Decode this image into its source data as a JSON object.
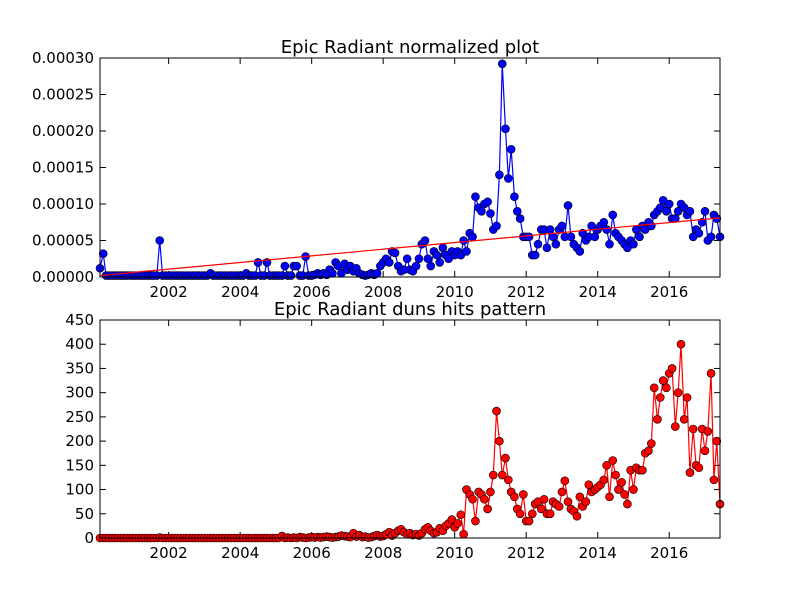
{
  "chart_data": [
    {
      "type": "line",
      "title": "Epic Radiant normalized plot",
      "color": "#0000ff",
      "xlim": [
        2000.08,
        2017.42
      ],
      "xticks": [
        2002,
        2004,
        2006,
        2008,
        2010,
        2012,
        2014,
        2016
      ],
      "ylim": [
        0,
        0.0003
      ],
      "yticks": [
        {
          "value": 0,
          "label": "0.00000"
        },
        {
          "value": 5e-05,
          "label": "0.00005"
        },
        {
          "value": 0.0001,
          "label": "0.00010"
        },
        {
          "value": 0.00015,
          "label": "0.00015"
        },
        {
          "value": 0.0002,
          "label": "0.00020"
        },
        {
          "value": 0.00025,
          "label": "0.00025"
        },
        {
          "value": 0.0003,
          "label": "0.00030"
        }
      ],
      "trend": {
        "color": "#ff0000",
        "x": [
          2000.08,
          2017.42
        ],
        "values": [
          2e-06,
          8.1e-05
        ]
      },
      "x": [
        2000.08,
        2000.17,
        2000.25,
        2000.33,
        2000.42,
        2000.5,
        2000.58,
        2000.67,
        2000.75,
        2000.83,
        2000.92,
        2001,
        2001.08,
        2001.17,
        2001.25,
        2001.33,
        2001.42,
        2001.5,
        2001.58,
        2001.67,
        2001.75,
        2001.83,
        2001.92,
        2002,
        2002.08,
        2002.17,
        2002.25,
        2002.33,
        2002.42,
        2002.5,
        2002.58,
        2002.67,
        2002.75,
        2002.83,
        2002.92,
        2003,
        2003.08,
        2003.17,
        2003.25,
        2003.33,
        2003.42,
        2003.5,
        2003.58,
        2003.67,
        2003.75,
        2003.83,
        2003.92,
        2004,
        2004.08,
        2004.17,
        2004.25,
        2004.33,
        2004.42,
        2004.5,
        2004.58,
        2004.67,
        2004.75,
        2004.83,
        2004.92,
        2005,
        2005.08,
        2005.17,
        2005.25,
        2005.33,
        2005.42,
        2005.5,
        2005.58,
        2005.67,
        2005.75,
        2005.83,
        2005.92,
        2006,
        2006.08,
        2006.17,
        2006.25,
        2006.33,
        2006.42,
        2006.5,
        2006.58,
        2006.67,
        2006.75,
        2006.83,
        2006.92,
        2007,
        2007.08,
        2007.17,
        2007.25,
        2007.33,
        2007.42,
        2007.5,
        2007.58,
        2007.67,
        2007.75,
        2007.83,
        2007.92,
        2008,
        2008.08,
        2008.17,
        2008.25,
        2008.33,
        2008.42,
        2008.5,
        2008.58,
        2008.67,
        2008.75,
        2008.83,
        2008.92,
        2009,
        2009.08,
        2009.17,
        2009.25,
        2009.33,
        2009.42,
        2009.5,
        2009.58,
        2009.67,
        2009.75,
        2009.83,
        2009.92,
        2010,
        2010.08,
        2010.17,
        2010.25,
        2010.33,
        2010.42,
        2010.5,
        2010.58,
        2010.67,
        2010.75,
        2010.83,
        2010.92,
        2011,
        2011.08,
        2011.17,
        2011.25,
        2011.33,
        2011.42,
        2011.5,
        2011.58,
        2011.67,
        2011.75,
        2011.83,
        2011.92,
        2012,
        2012.08,
        2012.17,
        2012.25,
        2012.33,
        2012.42,
        2012.5,
        2012.58,
        2012.67,
        2012.75,
        2012.83,
        2012.92,
        2013,
        2013.08,
        2013.17,
        2013.25,
        2013.33,
        2013.42,
        2013.5,
        2013.58,
        2013.67,
        2013.75,
        2013.83,
        2013.92,
        2014,
        2014.08,
        2014.17,
        2014.25,
        2014.33,
        2014.42,
        2014.5,
        2014.58,
        2014.67,
        2014.75,
        2014.83,
        2014.92,
        2015,
        2015.08,
        2015.17,
        2015.25,
        2015.33,
        2015.42,
        2015.5,
        2015.58,
        2015.67,
        2015.75,
        2015.83,
        2015.92,
        2016,
        2016.08,
        2016.17,
        2016.25,
        2016.33,
        2016.42,
        2016.5,
        2016.58,
        2016.67,
        2016.75,
        2016.83,
        2016.92,
        2017,
        2017.08,
        2017.17,
        2017.25,
        2017.33,
        2017.42
      ],
      "values": [
        1.2e-05,
        3.2e-05,
        2e-06,
        2e-06,
        2e-06,
        2e-06,
        2e-06,
        2e-06,
        2e-06,
        2e-06,
        2e-06,
        2e-06,
        2e-06,
        2e-06,
        2e-06,
        2e-06,
        2e-06,
        2e-06,
        2e-06,
        2e-06,
        5e-05,
        2e-06,
        2e-06,
        2e-06,
        2e-06,
        2e-06,
        2e-06,
        2e-06,
        2e-06,
        2e-06,
        2e-06,
        2e-06,
        2e-06,
        2e-06,
        2e-06,
        2e-06,
        2e-06,
        5e-06,
        2e-06,
        2e-06,
        2e-06,
        2e-06,
        2e-06,
        2e-06,
        2e-06,
        2e-06,
        2e-06,
        2e-06,
        2e-06,
        5e-06,
        2e-06,
        2e-06,
        2e-06,
        2e-05,
        2e-06,
        2e-06,
        2e-05,
        2e-06,
        2e-06,
        2e-06,
        2e-06,
        2e-06,
        1.5e-05,
        2e-06,
        2e-06,
        1.5e-05,
        1.5e-05,
        2e-06,
        2e-06,
        2.8e-05,
        2e-06,
        2e-06,
        3e-06,
        5e-06,
        3e-06,
        5e-06,
        3e-06,
        1e-05,
        5e-06,
        2e-05,
        1.5e-05,
        5e-06,
        1.8e-05,
        1e-05,
        1.5e-05,
        8e-06,
        1.2e-05,
        5e-06,
        3e-06,
        2e-06,
        3e-06,
        5e-06,
        3e-06,
        5e-06,
        1.5e-05,
        2e-05,
        2.5e-05,
        2e-05,
        3.5e-05,
        3.3e-05,
        1.5e-05,
        8e-06,
        1e-05,
        2.5e-05,
        1e-05,
        8e-06,
        1.5e-05,
        2.5e-05,
        4.5e-05,
        5e-05,
        2.5e-05,
        1.5e-05,
        3.5e-05,
        3e-05,
        2e-05,
        4e-05,
        3e-05,
        2.5e-05,
        3.5e-05,
        3e-05,
        3.5e-05,
        3e-05,
        5e-05,
        3.5e-05,
        6e-05,
        5.5e-05,
        0.00011,
        9.5e-05,
        9e-05,
        0.0001,
        0.000103,
        8.7e-05,
        6.5e-05,
        7e-05,
        0.00014,
        0.000292,
        0.000203,
        0.000135,
        0.000175,
        0.00011,
        9e-05,
        8e-05,
        5.5e-05,
        5.5e-05,
        5.5e-05,
        3e-05,
        3e-05,
        4.5e-05,
        6.5e-05,
        6.5e-05,
        4e-05,
        6.5e-05,
        5.5e-05,
        4.5e-05,
        6.5e-05,
        7e-05,
        5.5e-05,
        9.8e-05,
        5.5e-05,
        4.5e-05,
        4e-05,
        3.5e-05,
        6e-05,
        5e-05,
        5.5e-05,
        7e-05,
        5.5e-05,
        6.5e-05,
        7e-05,
        7.5e-05,
        6.5e-05,
        4.5e-05,
        8.5e-05,
        6e-05,
        5.5e-05,
        5e-05,
        4.5e-05,
        4e-05,
        5e-05,
        4.5e-05,
        6.5e-05,
        5.5e-05,
        7e-05,
        6.5e-05,
        7.5e-05,
        7e-05,
        8.5e-05,
        9e-05,
        9.5e-05,
        0.000105,
        9e-05,
        0.0001,
        8e-05,
        8e-05,
        9e-05,
        0.0001,
        9.5e-05,
        8.5e-05,
        9e-05,
        5.5e-05,
        6.5e-05,
        6e-05,
        7.5e-05,
        9e-05,
        5e-05,
        5.5e-05,
        8.5e-05,
        8e-05,
        5.5e-05
      ]
    },
    {
      "type": "line",
      "title": "Epic Radiant duns hits pattern",
      "color": "#ff0000",
      "xlim": [
        2000.08,
        2017.42
      ],
      "xticks": [
        2002,
        2004,
        2006,
        2008,
        2010,
        2012,
        2014,
        2016
      ],
      "ylim": [
        0,
        450
      ],
      "yticks": [
        0,
        50,
        100,
        150,
        200,
        250,
        300,
        350,
        400,
        450
      ],
      "x": [
        2000.08,
        2000.17,
        2000.25,
        2000.33,
        2000.42,
        2000.5,
        2000.58,
        2000.67,
        2000.75,
        2000.83,
        2000.92,
        2001,
        2001.08,
        2001.17,
        2001.25,
        2001.33,
        2001.42,
        2001.5,
        2001.58,
        2001.67,
        2001.75,
        2001.83,
        2001.92,
        2002,
        2002.08,
        2002.17,
        2002.25,
        2002.33,
        2002.42,
        2002.5,
        2002.58,
        2002.67,
        2002.75,
        2002.83,
        2002.92,
        2003,
        2003.08,
        2003.17,
        2003.25,
        2003.33,
        2003.42,
        2003.5,
        2003.58,
        2003.67,
        2003.75,
        2003.83,
        2003.92,
        2004,
        2004.08,
        2004.17,
        2004.25,
        2004.33,
        2004.42,
        2004.5,
        2004.58,
        2004.67,
        2004.75,
        2004.83,
        2004.92,
        2005,
        2005.08,
        2005.17,
        2005.25,
        2005.33,
        2005.42,
        2005.5,
        2005.58,
        2005.67,
        2005.75,
        2005.83,
        2005.92,
        2006,
        2006.08,
        2006.17,
        2006.25,
        2006.33,
        2006.42,
        2006.5,
        2006.58,
        2006.67,
        2006.75,
        2006.83,
        2006.92,
        2007,
        2007.08,
        2007.17,
        2007.25,
        2007.33,
        2007.42,
        2007.5,
        2007.58,
        2007.67,
        2007.75,
        2007.83,
        2007.92,
        2008,
        2008.08,
        2008.17,
        2008.25,
        2008.33,
        2008.42,
        2008.5,
        2008.58,
        2008.67,
        2008.75,
        2008.83,
        2008.92,
        2009,
        2009.08,
        2009.17,
        2009.25,
        2009.33,
        2009.42,
        2009.5,
        2009.58,
        2009.67,
        2009.75,
        2009.83,
        2009.92,
        2010,
        2010.08,
        2010.17,
        2010.25,
        2010.33,
        2010.42,
        2010.5,
        2010.58,
        2010.67,
        2010.75,
        2010.83,
        2010.92,
        2011,
        2011.08,
        2011.17,
        2011.25,
        2011.33,
        2011.42,
        2011.5,
        2011.58,
        2011.67,
        2011.75,
        2011.83,
        2011.92,
        2012,
        2012.08,
        2012.17,
        2012.25,
        2012.33,
        2012.42,
        2012.5,
        2012.58,
        2012.67,
        2012.75,
        2012.83,
        2012.92,
        2013,
        2013.08,
        2013.17,
        2013.25,
        2013.33,
        2013.42,
        2013.5,
        2013.58,
        2013.67,
        2013.75,
        2013.83,
        2013.92,
        2014,
        2014.08,
        2014.17,
        2014.25,
        2014.33,
        2014.42,
        2014.5,
        2014.58,
        2014.67,
        2014.75,
        2014.83,
        2014.92,
        2015,
        2015.08,
        2015.17,
        2015.25,
        2015.33,
        2015.42,
        2015.5,
        2015.58,
        2015.67,
        2015.75,
        2015.83,
        2015.92,
        2016,
        2016.08,
        2016.17,
        2016.25,
        2016.33,
        2016.42,
        2016.5,
        2016.58,
        2016.67,
        2016.75,
        2016.83,
        2016.92,
        2017,
        2017.08,
        2017.17,
        2017.25,
        2017.33,
        2017.42
      ],
      "values": [
        0,
        0,
        0,
        0,
        0,
        0,
        0,
        0,
        0,
        0,
        0,
        0,
        0,
        0,
        0,
        0,
        0,
        0,
        0,
        0,
        1,
        0,
        0,
        0,
        0,
        0,
        0,
        0,
        0,
        0,
        0,
        0,
        0,
        0,
        0,
        0,
        0,
        0,
        0,
        0,
        0,
        0,
        0,
        0,
        0,
        0,
        0,
        0,
        0,
        0,
        0,
        0,
        0,
        0,
        0,
        0,
        0,
        0,
        0,
        0,
        0,
        4,
        0,
        1,
        0,
        1,
        0,
        2,
        1,
        0,
        1,
        2,
        1,
        2,
        1,
        2,
        3,
        2,
        1,
        2,
        3,
        5,
        4,
        3,
        2,
        10,
        3,
        6,
        2,
        3,
        1,
        2,
        4,
        6,
        3,
        4,
        8,
        12,
        5,
        10,
        15,
        18,
        12,
        8,
        10,
        6,
        8,
        5,
        10,
        18,
        22,
        15,
        10,
        12,
        20,
        15,
        25,
        30,
        38,
        22,
        30,
        48,
        8,
        100,
        90,
        80,
        35,
        95,
        90,
        80,
        60,
        95,
        130,
        262,
        200,
        130,
        165,
        120,
        95,
        85,
        60,
        50,
        90,
        35,
        35,
        50,
        70,
        75,
        60,
        80,
        50,
        50,
        75,
        70,
        65,
        95,
        118,
        75,
        60,
        55,
        45,
        85,
        65,
        75,
        110,
        95,
        100,
        105,
        110,
        120,
        150,
        85,
        160,
        130,
        100,
        115,
        90,
        70,
        140,
        100,
        145,
        140,
        140,
        175,
        180,
        195,
        310,
        245,
        290,
        325,
        310,
        340,
        350,
        230,
        300,
        400,
        245,
        290,
        135,
        225,
        150,
        145,
        225,
        180,
        220,
        340,
        120,
        200,
        70
      ]
    }
  ]
}
